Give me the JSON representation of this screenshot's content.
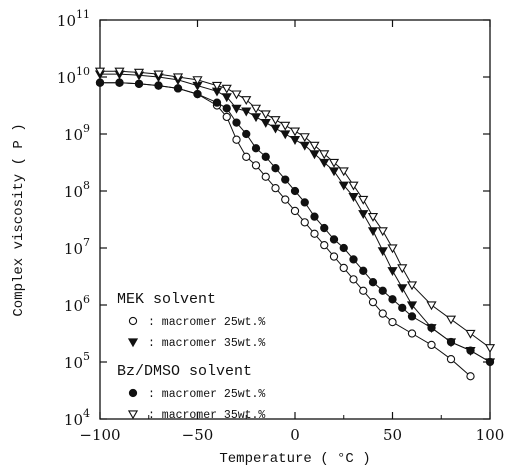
{
  "chart_data": {
    "type": "scatter",
    "xlabel": "Temperature ( °C )",
    "ylabel": "Complex viscosity ( P )",
    "xlim": [
      -100,
      100
    ],
    "ylim_log10": [
      4,
      11
    ],
    "y_scale": "log",
    "grid": false,
    "x_ticks": [
      {
        "value": -100,
        "label": "−100"
      },
      {
        "value": -50,
        "label": "−50"
      },
      {
        "value": 0,
        "label": "0"
      },
      {
        "value": 50,
        "label": "50"
      },
      {
        "value": 100,
        "label": "100"
      }
    ],
    "y_ticks": [
      {
        "exp": 4,
        "base": "10",
        "sup": "4"
      },
      {
        "exp": 5,
        "base": "10",
        "sup": "5"
      },
      {
        "exp": 6,
        "base": "10",
        "sup": "6"
      },
      {
        "exp": 7,
        "base": "10",
        "sup": "7"
      },
      {
        "exp": 8,
        "base": "10",
        "sup": "8"
      },
      {
        "exp": 9,
        "base": "10",
        "sup": "9"
      },
      {
        "exp": 10,
        "base": "10",
        "sup": "10"
      },
      {
        "exp": 11,
        "base": "10",
        "sup": "11"
      }
    ],
    "legend_groups": [
      {
        "title": "MEK solvent",
        "entries": [
          0,
          1
        ]
      },
      {
        "title": "Bz/DMSO solvent",
        "entries": [
          2,
          3
        ]
      }
    ],
    "series": [
      {
        "name": ": macromer 25wt.%",
        "marker": "circle-open",
        "x": [
          -100,
          -90,
          -80,
          -70,
          -60,
          -50,
          -40,
          -35,
          -30,
          -25,
          -20,
          -15,
          -10,
          -5,
          0,
          5,
          10,
          15,
          20,
          25,
          30,
          35,
          40,
          45,
          50,
          60,
          70,
          80,
          90
        ],
        "log10_y": [
          9.9,
          9.9,
          9.88,
          9.85,
          9.8,
          9.7,
          9.5,
          9.3,
          8.9,
          8.6,
          8.45,
          8.25,
          8.05,
          7.85,
          7.65,
          7.45,
          7.25,
          7.05,
          6.85,
          6.65,
          6.45,
          6.25,
          6.05,
          5.85,
          5.7,
          5.5,
          5.3,
          5.05,
          4.75
        ]
      },
      {
        "name": ": macromer 35wt.%",
        "marker": "triangle-down-filled",
        "x": [
          -100,
          -90,
          -80,
          -70,
          -60,
          -50,
          -40,
          -35,
          -30,
          -25,
          -20,
          -15,
          -10,
          -5,
          0,
          5,
          10,
          15,
          20,
          25,
          30,
          35,
          40,
          45,
          50,
          55,
          60,
          70,
          80,
          90,
          100
        ],
        "log10_y": [
          10.05,
          10.05,
          10.03,
          10.0,
          9.95,
          9.85,
          9.75,
          9.65,
          9.45,
          9.4,
          9.3,
          9.2,
          9.1,
          9.0,
          8.9,
          8.8,
          8.65,
          8.5,
          8.35,
          8.1,
          7.9,
          7.6,
          7.3,
          6.95,
          6.6,
          6.3,
          6.0,
          5.6,
          5.35,
          5.2,
          5.0
        ]
      },
      {
        "name": ": macromer 25wt.%",
        "marker": "circle-filled",
        "x": [
          -100,
          -90,
          -80,
          -70,
          -60,
          -50,
          -40,
          -35,
          -30,
          -25,
          -20,
          -15,
          -10,
          -5,
          0,
          5,
          10,
          15,
          20,
          25,
          30,
          35,
          40,
          45,
          50,
          55,
          60,
          70,
          80,
          90,
          100
        ],
        "log10_y": [
          9.9,
          9.9,
          9.88,
          9.85,
          9.8,
          9.7,
          9.55,
          9.45,
          9.2,
          9.0,
          8.75,
          8.6,
          8.4,
          8.2,
          8.0,
          7.8,
          7.55,
          7.35,
          7.15,
          7.0,
          6.8,
          6.6,
          6.4,
          6.25,
          6.1,
          5.95,
          5.8,
          5.6,
          5.35,
          5.2,
          5.0
        ]
      },
      {
        "name": ": macromer 35wt.%",
        "marker": "triangle-down-open",
        "x": [
          -100,
          -90,
          -80,
          -70,
          -60,
          -50,
          -40,
          -35,
          -30,
          -25,
          -20,
          -15,
          -10,
          -5,
          0,
          5,
          10,
          15,
          20,
          25,
          30,
          35,
          40,
          45,
          50,
          55,
          60,
          70,
          80,
          90,
          100
        ],
        "log10_y": [
          10.1,
          10.1,
          10.08,
          10.05,
          10.0,
          9.95,
          9.85,
          9.8,
          9.7,
          9.6,
          9.45,
          9.35,
          9.25,
          9.15,
          9.05,
          8.95,
          8.8,
          8.65,
          8.5,
          8.35,
          8.1,
          7.85,
          7.55,
          7.3,
          7.0,
          6.65,
          6.35,
          6.0,
          5.75,
          5.5,
          5.25
        ]
      }
    ]
  }
}
